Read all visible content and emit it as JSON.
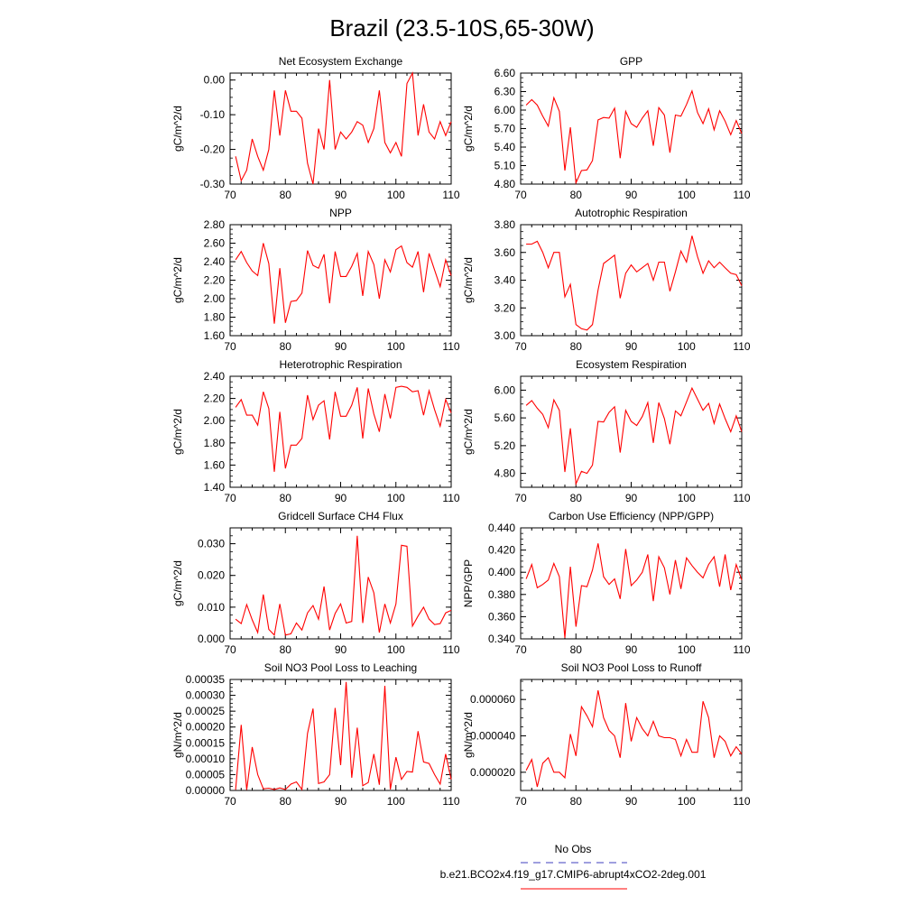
{
  "title": "Brazil (23.5-10S,65-30W)",
  "colors": {
    "series": "#ff0000",
    "obs": "#6666cc",
    "axis": "#000000"
  },
  "legend": {
    "obs_label": "No Obs",
    "model_label": "b.e21.BCO2x4.f19_g17.CMIP6-abrupt4xCO2-2deg.001"
  },
  "chart_data": [
    {
      "type": "line",
      "title": "Net Ecosystem Exchange",
      "ylabel": "gC/m^2/d",
      "xlim": [
        70,
        110
      ],
      "x_ticks": [
        70,
        80,
        90,
        100,
        110
      ],
      "ylim": [
        -0.3,
        0.02
      ],
      "y_ticks": [
        -0.3,
        -0.2,
        -0.1,
        0.0
      ],
      "y_ticklabels": [
        "-0.30",
        "-0.20",
        "-0.10",
        "0.00"
      ],
      "x": [
        71,
        72,
        73,
        74,
        75,
        76,
        77,
        78,
        79,
        80,
        81,
        82,
        83,
        84,
        85,
        86,
        87,
        88,
        89,
        90,
        91,
        92,
        93,
        94,
        95,
        96,
        97,
        98,
        99,
        100,
        101,
        102,
        103,
        104,
        105,
        106,
        107,
        108,
        109,
        110
      ],
      "values": [
        -0.22,
        -0.29,
        -0.26,
        -0.17,
        -0.22,
        -0.26,
        -0.2,
        -0.03,
        -0.16,
        -0.03,
        -0.09,
        -0.09,
        -0.11,
        -0.24,
        -0.3,
        -0.14,
        -0.2,
        0.0,
        -0.2,
        -0.15,
        -0.17,
        -0.15,
        -0.12,
        -0.13,
        -0.18,
        -0.14,
        -0.03,
        -0.18,
        -0.21,
        -0.18,
        -0.22,
        -0.01,
        0.02,
        -0.16,
        -0.07,
        -0.15,
        -0.17,
        -0.12,
        -0.16,
        -0.12
      ]
    },
    {
      "type": "line",
      "title": "GPP",
      "ylabel": "gC/m^2/d",
      "xlim": [
        70,
        110
      ],
      "x_ticks": [
        70,
        80,
        90,
        100,
        110
      ],
      "ylim": [
        4.8,
        6.6
      ],
      "y_ticks": [
        4.8,
        5.1,
        5.4,
        5.7,
        6.0,
        6.3,
        6.6
      ],
      "y_ticklabels": [
        "4.80",
        "5.10",
        "5.40",
        "5.70",
        "6.00",
        "6.30",
        "6.60"
      ],
      "x": [
        71,
        72,
        73,
        74,
        75,
        76,
        77,
        78,
        79,
        80,
        81,
        82,
        83,
        84,
        85,
        86,
        87,
        88,
        89,
        90,
        91,
        92,
        93,
        94,
        95,
        96,
        97,
        98,
        99,
        100,
        101,
        102,
        103,
        104,
        105,
        106,
        107,
        108,
        109,
        110
      ],
      "values": [
        6.08,
        6.17,
        6.08,
        5.9,
        5.74,
        6.2,
        5.98,
        5.02,
        5.72,
        4.82,
        5.02,
        5.03,
        5.18,
        5.84,
        5.88,
        5.87,
        6.03,
        5.22,
        5.98,
        5.78,
        5.72,
        5.87,
        5.99,
        5.42,
        6.04,
        5.92,
        5.31,
        5.92,
        5.9,
        6.09,
        6.31,
        5.96,
        5.78,
        6.02,
        5.68,
        5.99,
        5.82,
        5.6,
        5.83,
        5.62
      ]
    },
    {
      "type": "line",
      "title": "NPP",
      "ylabel": "gC/m^2/d",
      "xlim": [
        70,
        110
      ],
      "x_ticks": [
        70,
        80,
        90,
        100,
        110
      ],
      "ylim": [
        1.6,
        2.8
      ],
      "y_ticks": [
        1.6,
        1.8,
        2.0,
        2.2,
        2.4,
        2.6,
        2.8
      ],
      "y_ticklabels": [
        "1.60",
        "1.80",
        "2.00",
        "2.20",
        "2.40",
        "2.60",
        "2.80"
      ],
      "x": [
        71,
        72,
        73,
        74,
        75,
        76,
        77,
        78,
        79,
        80,
        81,
        82,
        83,
        84,
        85,
        86,
        87,
        88,
        89,
        90,
        91,
        92,
        93,
        94,
        95,
        96,
        97,
        98,
        99,
        100,
        101,
        102,
        103,
        104,
        105,
        106,
        107,
        108,
        109,
        110
      ],
      "values": [
        2.42,
        2.51,
        2.39,
        2.3,
        2.25,
        2.6,
        2.38,
        1.73,
        2.33,
        1.74,
        1.97,
        1.98,
        2.06,
        2.52,
        2.36,
        2.33,
        2.48,
        1.95,
        2.51,
        2.24,
        2.24,
        2.35,
        2.49,
        2.03,
        2.51,
        2.37,
        2.0,
        2.42,
        2.29,
        2.53,
        2.57,
        2.39,
        2.34,
        2.51,
        2.07,
        2.49,
        2.31,
        2.13,
        2.42,
        2.25
      ]
    },
    {
      "type": "line",
      "title": "Autotrophic Respiration",
      "ylabel": "gC/m^2/d",
      "xlim": [
        70,
        110
      ],
      "x_ticks": [
        70,
        80,
        90,
        100,
        110
      ],
      "ylim": [
        3.0,
        3.8
      ],
      "y_ticks": [
        3.0,
        3.2,
        3.4,
        3.6,
        3.8
      ],
      "y_ticklabels": [
        "3.00",
        "3.20",
        "3.40",
        "3.60",
        "3.80"
      ],
      "x": [
        71,
        72,
        73,
        74,
        75,
        76,
        77,
        78,
        79,
        80,
        81,
        82,
        83,
        84,
        85,
        86,
        87,
        88,
        89,
        90,
        91,
        92,
        93,
        94,
        95,
        96,
        97,
        98,
        99,
        100,
        101,
        102,
        103,
        104,
        105,
        106,
        107,
        108,
        109,
        110
      ],
      "values": [
        3.66,
        3.66,
        3.68,
        3.6,
        3.49,
        3.6,
        3.6,
        3.28,
        3.37,
        3.08,
        3.05,
        3.04,
        3.08,
        3.33,
        3.52,
        3.55,
        3.58,
        3.27,
        3.45,
        3.51,
        3.46,
        3.49,
        3.52,
        3.4,
        3.53,
        3.53,
        3.32,
        3.46,
        3.61,
        3.53,
        3.72,
        3.57,
        3.45,
        3.54,
        3.49,
        3.53,
        3.49,
        3.45,
        3.44,
        3.36
      ]
    },
    {
      "type": "line",
      "title": "Heterotrophic Respiration",
      "ylabel": "gC/m^2/d",
      "xlim": [
        70,
        110
      ],
      "x_ticks": [
        70,
        80,
        90,
        100,
        110
      ],
      "ylim": [
        1.4,
        2.4
      ],
      "y_ticks": [
        1.4,
        1.6,
        1.8,
        2.0,
        2.2,
        2.4
      ],
      "y_ticklabels": [
        "1.40",
        "1.60",
        "1.80",
        "2.00",
        "2.20",
        "2.40"
      ],
      "x": [
        71,
        72,
        73,
        74,
        75,
        76,
        77,
        78,
        79,
        80,
        81,
        82,
        83,
        84,
        85,
        86,
        87,
        88,
        89,
        90,
        91,
        92,
        93,
        94,
        95,
        96,
        97,
        98,
        99,
        100,
        101,
        102,
        103,
        104,
        105,
        106,
        107,
        108,
        109,
        110
      ],
      "values": [
        2.12,
        2.19,
        2.05,
        2.05,
        1.96,
        2.26,
        2.11,
        1.54,
        2.08,
        1.57,
        1.78,
        1.78,
        1.84,
        2.23,
        2.01,
        2.14,
        2.18,
        1.83,
        2.26,
        2.04,
        2.04,
        2.14,
        2.3,
        1.84,
        2.29,
        2.06,
        1.9,
        2.24,
        2.02,
        2.3,
        2.31,
        2.3,
        2.26,
        2.27,
        2.05,
        2.27,
        2.1,
        1.95,
        2.19,
        2.07
      ]
    },
    {
      "type": "line",
      "title": "Ecosystem Respiration",
      "ylabel": "gC/m^2/d",
      "xlim": [
        70,
        110
      ],
      "x_ticks": [
        70,
        80,
        90,
        100,
        110
      ],
      "ylim": [
        4.6,
        6.2
      ],
      "y_ticks": [
        4.8,
        5.2,
        5.6,
        6.0
      ],
      "y_ticklabels": [
        "4.80",
        "5.20",
        "5.60",
        "6.00"
      ],
      "x": [
        71,
        72,
        73,
        74,
        75,
        76,
        77,
        78,
        79,
        80,
        81,
        82,
        83,
        84,
        85,
        86,
        87,
        88,
        89,
        90,
        91,
        92,
        93,
        94,
        95,
        96,
        97,
        98,
        99,
        100,
        101,
        102,
        103,
        104,
        105,
        106,
        107,
        108,
        109,
        110
      ],
      "values": [
        5.78,
        5.85,
        5.74,
        5.65,
        5.46,
        5.86,
        5.71,
        4.82,
        5.45,
        4.65,
        4.83,
        4.8,
        4.92,
        5.55,
        5.54,
        5.68,
        5.76,
        5.1,
        5.71,
        5.55,
        5.49,
        5.62,
        5.82,
        5.24,
        5.82,
        5.59,
        5.22,
        5.7,
        5.63,
        5.83,
        6.03,
        5.87,
        5.71,
        5.81,
        5.52,
        5.8,
        5.59,
        5.4,
        5.63,
        5.4
      ]
    },
    {
      "type": "line",
      "title": "Gridcell Surface CH4 Flux",
      "ylabel": "gC/m^2/d",
      "xlim": [
        70,
        110
      ],
      "x_ticks": [
        70,
        80,
        90,
        100,
        110
      ],
      "ylim": [
        0.0,
        0.035
      ],
      "y_ticks": [
        0.0,
        0.01,
        0.02,
        0.03
      ],
      "y_ticklabels": [
        "0.000",
        "0.010",
        "0.020",
        "0.030"
      ],
      "x": [
        71,
        72,
        73,
        74,
        75,
        76,
        77,
        78,
        79,
        80,
        81,
        82,
        83,
        84,
        85,
        86,
        87,
        88,
        89,
        90,
        91,
        92,
        93,
        94,
        95,
        96,
        97,
        98,
        99,
        100,
        101,
        102,
        103,
        104,
        105,
        106,
        107,
        108,
        109,
        110
      ],
      "values": [
        0.0062,
        0.0048,
        0.0108,
        0.006,
        0.002,
        0.014,
        0.003,
        0.0012,
        0.011,
        0.0012,
        0.0016,
        0.005,
        0.0028,
        0.0082,
        0.0105,
        0.0062,
        0.0165,
        0.0028,
        0.008,
        0.011,
        0.005,
        0.0055,
        0.0325,
        0.005,
        0.0195,
        0.0145,
        0.002,
        0.011,
        0.005,
        0.011,
        0.0295,
        0.0292,
        0.004,
        0.0072,
        0.01,
        0.0062,
        0.0045,
        0.0048,
        0.0082,
        0.009
      ]
    },
    {
      "type": "line",
      "title": "Carbon Use Efficiency (NPP/GPP)",
      "ylabel": "NPP/GPP",
      "xlim": [
        70,
        110
      ],
      "x_ticks": [
        70,
        80,
        90,
        100,
        110
      ],
      "ylim": [
        0.34,
        0.44
      ],
      "y_ticks": [
        0.34,
        0.36,
        0.38,
        0.4,
        0.42,
        0.44
      ],
      "y_ticklabels": [
        "0.340",
        "0.360",
        "0.380",
        "0.400",
        "0.420",
        "0.440"
      ],
      "x": [
        71,
        72,
        73,
        74,
        75,
        76,
        77,
        78,
        79,
        80,
        81,
        82,
        83,
        84,
        85,
        86,
        87,
        88,
        89,
        90,
        91,
        92,
        93,
        94,
        95,
        96,
        97,
        98,
        99,
        100,
        101,
        102,
        103,
        104,
        105,
        106,
        107,
        108,
        109,
        110
      ],
      "values": [
        0.394,
        0.407,
        0.386,
        0.389,
        0.393,
        0.408,
        0.396,
        0.341,
        0.405,
        0.351,
        0.388,
        0.387,
        0.402,
        0.426,
        0.396,
        0.389,
        0.394,
        0.376,
        0.421,
        0.388,
        0.393,
        0.4,
        0.416,
        0.374,
        0.414,
        0.404,
        0.38,
        0.411,
        0.385,
        0.413,
        0.406,
        0.4,
        0.395,
        0.407,
        0.414,
        0.387,
        0.416,
        0.384,
        0.407,
        0.393
      ]
    },
    {
      "type": "line",
      "title": "Soil NO3 Pool Loss to Leaching",
      "ylabel": "gN/m^2/d",
      "xlim": [
        70,
        110
      ],
      "x_ticks": [
        70,
        80,
        90,
        100,
        110
      ],
      "ylim": [
        0.0,
        0.00035
      ],
      "y_ticks": [
        0.0,
        5e-05,
        0.0001,
        0.00015,
        0.0002,
        0.00025,
        0.0003,
        0.00035
      ],
      "y_ticklabels": [
        "0.00000",
        "0.00005",
        "0.00010",
        "0.00015",
        "0.00020",
        "0.00025",
        "0.00030",
        "0.00035"
      ],
      "x": [
        71,
        72,
        73,
        74,
        75,
        76,
        77,
        78,
        79,
        80,
        81,
        82,
        83,
        84,
        85,
        86,
        87,
        88,
        89,
        90,
        91,
        92,
        93,
        94,
        95,
        96,
        97,
        98,
        99,
        100,
        101,
        102,
        103,
        104,
        105,
        106,
        107,
        108,
        109,
        110
      ],
      "values": [
        2e-06,
        0.000207,
        2e-06,
        0.000137,
        5e-05,
        5e-06,
        7e-06,
        3e-06,
        8e-06,
        3e-06,
        2e-05,
        2.7e-05,
        3e-06,
        0.00018,
        0.000258,
        2.2e-05,
        2.7e-05,
        5e-05,
        0.00026,
        8e-05,
        0.000342,
        4e-05,
        0.000198,
        1.5e-05,
        2.5e-05,
        0.000115,
        1.8e-05,
        0.00033,
        3e-06,
        0.000105,
        3.5e-05,
        6e-05,
        5.8e-05,
        0.000187,
        9e-05,
        8.5e-05,
        5e-05,
        2e-05,
        0.000115,
        3.5e-05
      ]
    },
    {
      "type": "line",
      "title": "Soil NO3 Pool Loss to Runoff",
      "ylabel": "gN/m^2/d",
      "xlim": [
        70,
        110
      ],
      "x_ticks": [
        70,
        80,
        90,
        100,
        110
      ],
      "ylim": [
        1e-05,
        7.1e-05
      ],
      "y_ticks": [
        2e-05,
        4e-05,
        6e-05
      ],
      "y_ticklabels": [
        "0.000020",
        "0.000040",
        "0.000060"
      ],
      "x": [
        71,
        72,
        73,
        74,
        75,
        76,
        77,
        78,
        79,
        80,
        81,
        82,
        83,
        84,
        85,
        86,
        87,
        88,
        89,
        90,
        91,
        92,
        93,
        94,
        95,
        96,
        97,
        98,
        99,
        100,
        101,
        102,
        103,
        104,
        105,
        106,
        107,
        108,
        109,
        110
      ],
      "values": [
        2.1e-05,
        2.7e-05,
        1.2e-05,
        2.5e-05,
        2.8e-05,
        2e-05,
        2e-05,
        1.7e-05,
        4.1e-05,
        2.9e-05,
        5.6e-05,
        5.1e-05,
        4.5e-05,
        6.5e-05,
        5e-05,
        4.3e-05,
        4e-05,
        2.8e-05,
        5.8e-05,
        3.7e-05,
        5e-05,
        4.4e-05,
        4e-05,
        4.8e-05,
        4e-05,
        3.9e-05,
        3.9e-05,
        3.8e-05,
        2.9e-05,
        3.8e-05,
        3.1e-05,
        3.1e-05,
        5.9e-05,
        5e-05,
        2.8e-05,
        4e-05,
        3.7e-05,
        2.9e-05,
        3.4e-05,
        3e-05
      ]
    }
  ]
}
